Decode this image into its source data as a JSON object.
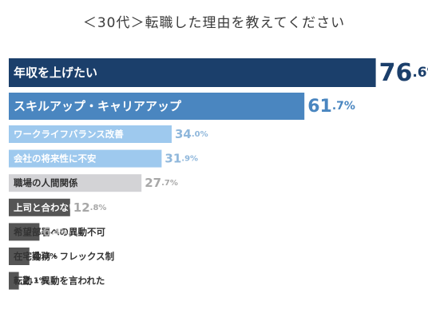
{
  "title": "＜30代＞転職した理由を教えてください",
  "chart_data": {
    "type": "bar",
    "orientation": "horizontal",
    "title": "＜30代＞転職した理由を教えてください",
    "xlim": [
      0,
      80
    ],
    "grid": false,
    "legend": "none",
    "unit": "%",
    "categories": [
      "年収を上げたい",
      "スキルアップ・キャリアアップ",
      "ワークライフバランス改善",
      "会社の将来性に不安",
      "職場の人間関係",
      "上司と合わない",
      "希望部署への異動不可",
      "在宅勤務・フレックス制",
      "転勤・異動を言われた"
    ],
    "values": [
      76.6,
      61.7,
      34.0,
      31.9,
      27.7,
      12.8,
      6.4,
      4.3,
      2.1
    ],
    "value_labels": [
      {
        "int": "76",
        "dec": ".6%"
      },
      {
        "int": "61",
        "dec": ".7%"
      },
      {
        "int": "34",
        "dec": ".0%"
      },
      {
        "int": "31",
        "dec": ".9%"
      },
      {
        "int": "27",
        "dec": ".7%"
      },
      {
        "int": "12",
        "dec": ".8%"
      },
      {
        "int": "6",
        "dec": ".4%"
      },
      {
        "int": "4",
        "dec": ".3%"
      },
      {
        "int": "2",
        "dec": ".1%"
      }
    ],
    "colors": {
      "bars": [
        "#1b3f6b",
        "#4a86c0",
        "#9ec9ee",
        "#9ec9ee",
        "#d3d3d6",
        "#555555",
        "#555555",
        "#555555",
        "#555555"
      ],
      "label_text": [
        "#ffffff",
        "#ffffff",
        "#ffffff",
        "#ffffff",
        "#333333",
        "#ffffff",
        "#333333",
        "#333333",
        "#333333"
      ],
      "value_text": [
        "#1b3f6b",
        "#4a86c0",
        "#8fb7db",
        "#8fb7db",
        "#a8a8a8",
        "#a8a8a8",
        "#a8a8a8",
        "#333333",
        "#333333"
      ]
    }
  }
}
